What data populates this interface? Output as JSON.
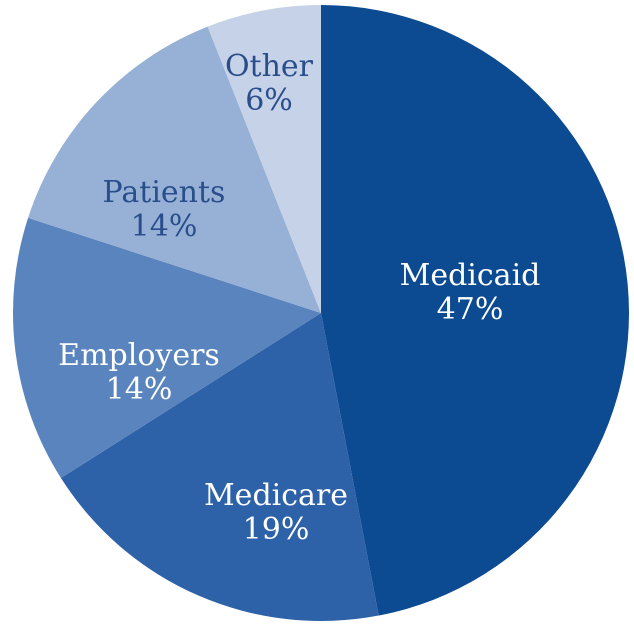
{
  "chart_data": {
    "type": "pie",
    "start_angle_deg": 0,
    "direction": "clockwise",
    "slices": [
      {
        "label": "Medicaid",
        "value": 47,
        "value_label": "47%",
        "color": "#0c4a92",
        "text_color": "#ffffff"
      },
      {
        "label": "Medicare",
        "value": 19,
        "value_label": "19%",
        "color": "#2d62a8",
        "text_color": "#ffffff"
      },
      {
        "label": "Employers",
        "value": 14,
        "value_label": "14%",
        "color": "#5a84bd",
        "text_color": "#ffffff"
      },
      {
        "label": "Patients",
        "value": 14,
        "value_label": "14%",
        "color": "#97b1d6",
        "text_color": "#2a4e8c"
      },
      {
        "label": "Other",
        "value": 6,
        "value_label": "6%",
        "color": "#c6d2e7",
        "text_color": "#2a4e8c"
      }
    ]
  }
}
